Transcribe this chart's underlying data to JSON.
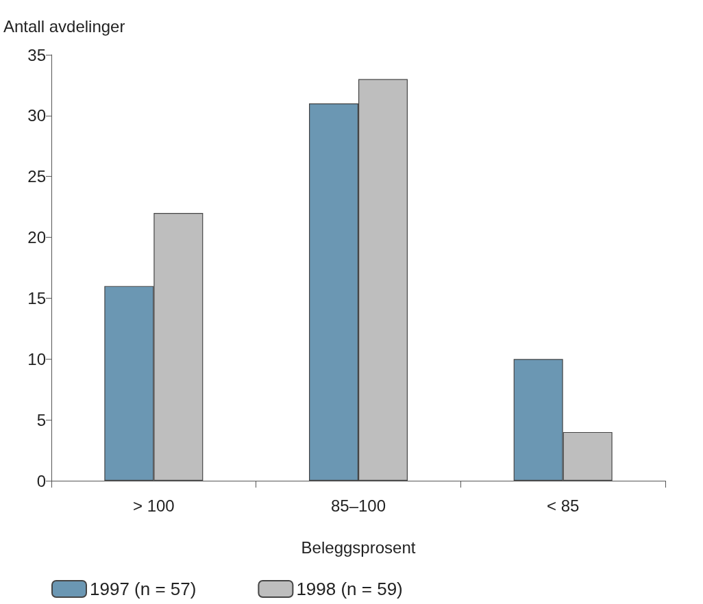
{
  "chart_data": {
    "type": "bar",
    "xlabel": "Beleggsprosent",
    "ylabel": "Antall avdelinger",
    "categories": [
      "> 100",
      "85–100",
      "< 85"
    ],
    "series": [
      {
        "name": "1997 (n = 57)",
        "color": "#6b97b3",
        "values": [
          16,
          31,
          10
        ]
      },
      {
        "name": "1998 (n = 59)",
        "color": "#bebebe",
        "values": [
          22,
          33,
          4
        ]
      }
    ],
    "ylim": [
      0,
      35
    ],
    "yticks": [
      0,
      5,
      10,
      15,
      20,
      25,
      30,
      35
    ],
    "grid": false,
    "legend": "bottom left"
  }
}
